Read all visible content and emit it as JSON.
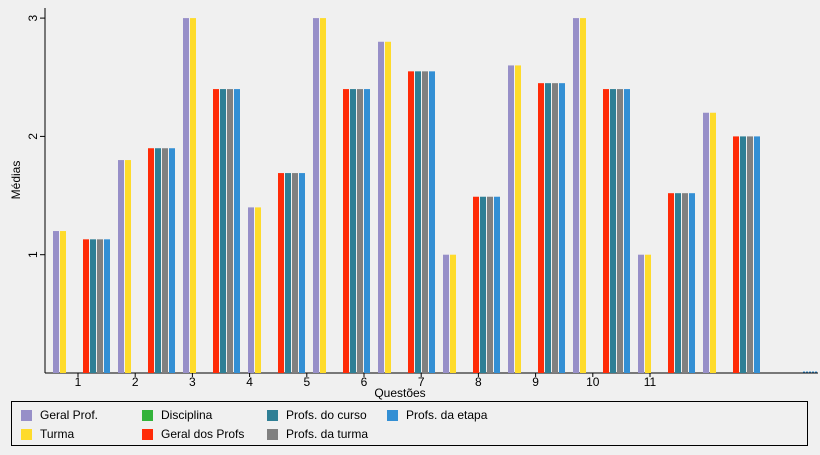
{
  "chart_data": {
    "type": "bar",
    "xlabel": "Questões",
    "ylabel": "Médias",
    "ylim": [
      0,
      3
    ],
    "yticks": [
      "1",
      "2",
      "3"
    ],
    "xticks": [
      "1",
      "2",
      "3",
      "4",
      "5",
      "6",
      "7",
      "8",
      "9",
      "10",
      "11"
    ],
    "grid": false,
    "legend_position": "bottom",
    "series": [
      {
        "name": "Geral Prof.",
        "color": "#978fc8"
      },
      {
        "name": "Turma",
        "color": "#fedb2b"
      },
      {
        "name": "Disciplina",
        "color": "#33b33a"
      },
      {
        "name": "Geral dos Profs",
        "color": "#ff2b07"
      },
      {
        "name": "Profs. do curso",
        "color": "#2f7f95"
      },
      {
        "name": "Profs. da turma",
        "color": "#808080"
      },
      {
        "name": "Profs. da etapa",
        "color": "#338fd4"
      }
    ],
    "groups": [
      {
        "type": "pair",
        "values": [
          1.2,
          1.2
        ]
      },
      {
        "type": "quad",
        "values": [
          1.13,
          1.13,
          1.13,
          1.13
        ]
      },
      {
        "type": "pair",
        "values": [
          1.8,
          1.8
        ]
      },
      {
        "type": "quad",
        "values": [
          1.9,
          1.9,
          1.9,
          1.9
        ]
      },
      {
        "type": "pair",
        "values": [
          3.0,
          3.0
        ]
      },
      {
        "type": "quad",
        "values": [
          2.4,
          2.4,
          2.4,
          2.4
        ]
      },
      {
        "type": "pair",
        "values": [
          1.4,
          1.4
        ]
      },
      {
        "type": "quad",
        "values": [
          1.69,
          1.69,
          1.69,
          1.69
        ]
      },
      {
        "type": "pair",
        "values": [
          3.0,
          3.0
        ]
      },
      {
        "type": "quad",
        "values": [
          2.4,
          2.4,
          2.4,
          2.4
        ]
      },
      {
        "type": "pair",
        "values": [
          2.8,
          2.8
        ]
      },
      {
        "type": "quad",
        "values": [
          2.55,
          2.55,
          2.55,
          2.55
        ]
      },
      {
        "type": "pair",
        "values": [
          1.0,
          1.0
        ]
      },
      {
        "type": "quad",
        "values": [
          1.49,
          1.49,
          1.49,
          1.49
        ]
      },
      {
        "type": "pair",
        "values": [
          2.6,
          2.6
        ]
      },
      {
        "type": "quad",
        "values": [
          2.45,
          2.45,
          2.45,
          2.45
        ]
      },
      {
        "type": "pair",
        "values": [
          3.0,
          3.0
        ]
      },
      {
        "type": "quad",
        "values": [
          2.4,
          2.4,
          2.4,
          2.4
        ]
      },
      {
        "type": "pair",
        "values": [
          1.0,
          1.0
        ]
      },
      {
        "type": "quad",
        "values": [
          1.52,
          1.52,
          1.52,
          1.52
        ]
      },
      {
        "type": "pair",
        "values": [
          2.2,
          2.2
        ]
      },
      {
        "type": "quad",
        "values": [
          2.0,
          2.0,
          2.0,
          2.0
        ]
      }
    ]
  }
}
